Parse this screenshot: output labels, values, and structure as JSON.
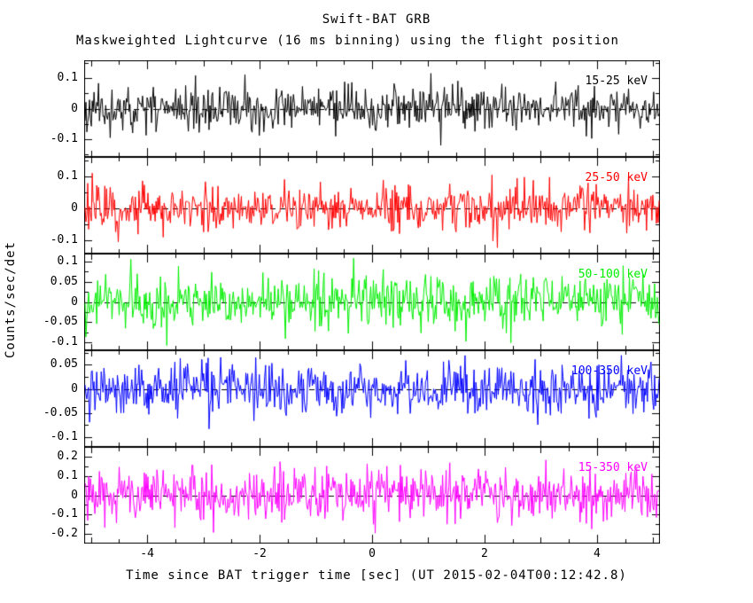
{
  "chart_data": {
    "type": "line",
    "title": "Swift-BAT GRB",
    "subtitle": "Maskweighted Lightcurve (16 ms binning) using the flight position",
    "xlabel": "Time since BAT trigger time [sec] (UT 2015-02-04T00:12:42.8)",
    "ylabel": "Counts/sec/det",
    "xlim": [
      -5.12,
      5.12
    ],
    "x_ticks": [
      -4,
      -2,
      0,
      2,
      4
    ],
    "x_minor_step": 0.5,
    "bin_seconds": 0.016,
    "n_bins": 640,
    "grid": false,
    "legend_position": "inside-right-per-panel",
    "zero_line": {
      "style": "dashed",
      "color": "#000000"
    },
    "panels": [
      {
        "name": "15-25 keV",
        "color": "#000000",
        "ylim": [
          -0.16,
          0.16
        ],
        "ticks": [
          0.1,
          0,
          -0.1
        ],
        "noise_sigma": 0.035,
        "seed": 11
      },
      {
        "name": "25-50 keV",
        "color": "#ff0000",
        "ylim": [
          -0.14,
          0.16
        ],
        "ticks": [
          0.1,
          0,
          -0.1
        ],
        "noise_sigma": 0.035,
        "seed": 22
      },
      {
        "name": "50-100 keV",
        "color": "#00ee00",
        "ylim": [
          -0.12,
          0.12
        ],
        "ticks": [
          0.1,
          0.05,
          0,
          -0.05,
          -0.1
        ],
        "noise_sigma": 0.032,
        "seed": 33
      },
      {
        "name": "100-350 keV",
        "color": "#0000ff",
        "ylim": [
          -0.12,
          0.08
        ],
        "ticks": [
          0.05,
          0,
          -0.05,
          -0.1
        ],
        "noise_sigma": 0.026,
        "seed": 44
      },
      {
        "name": "15-350 keV",
        "color": "#ff00ff",
        "ylim": [
          -0.25,
          0.25
        ],
        "ticks": [
          0.2,
          0.1,
          0,
          -0.1,
          -0.2
        ],
        "noise_sigma": 0.07,
        "seed": 55
      }
    ]
  }
}
